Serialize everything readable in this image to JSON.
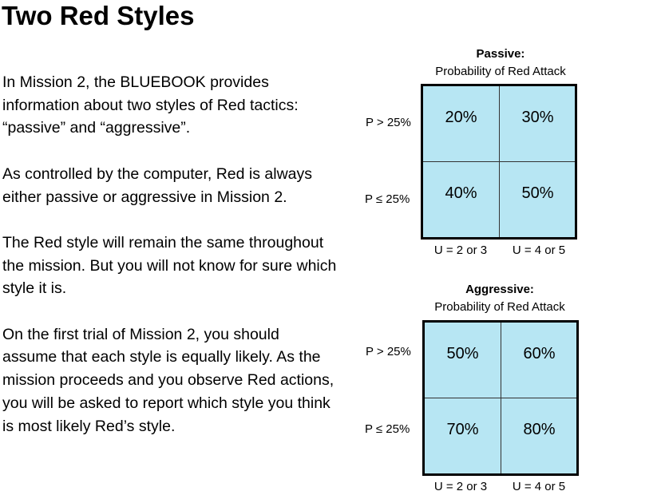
{
  "slide": {
    "title": "Two Red Styles",
    "paragraphs": [
      "In Mission 2, the BLUEBOOK provides information about two styles of Red tactics: “passive” and “aggressive”.",
      "As controlled by the computer, Red is always either passive or aggressive in Mission 2.",
      "The Red style will remain the same throughout the mission. But you will not know for sure which style it is.",
      "On the first trial of Mission 2, you should assume that each style is equally likely. As the mission proceeds and you observe Red actions, you will be asked to report which style you think is most likely Red’s style."
    ]
  },
  "tables": {
    "passive": {
      "heading": "Passive:",
      "subheading": "Probability of Red Attack",
      "row_labels": [
        "P > 25%",
        "P ≤ 25%"
      ],
      "col_labels": [
        "U = 2 or 3",
        "U = 4 or 5"
      ],
      "cells": [
        [
          "20%",
          "30%"
        ],
        [
          "40%",
          "50%"
        ]
      ]
    },
    "aggressive": {
      "heading": "Aggressive:",
      "subheading": "Probability of Red Attack",
      "row_labels": [
        "P > 25%",
        "P ≤ 25%"
      ],
      "col_labels": [
        "U = 2 or 3",
        "U = 4 or 5"
      ],
      "cells": [
        [
          "50%",
          "60%"
        ],
        [
          "70%",
          "80%"
        ]
      ]
    }
  },
  "colors": {
    "cell_fill": "#b7e6f3",
    "border": "#000000",
    "text": "#000000"
  }
}
